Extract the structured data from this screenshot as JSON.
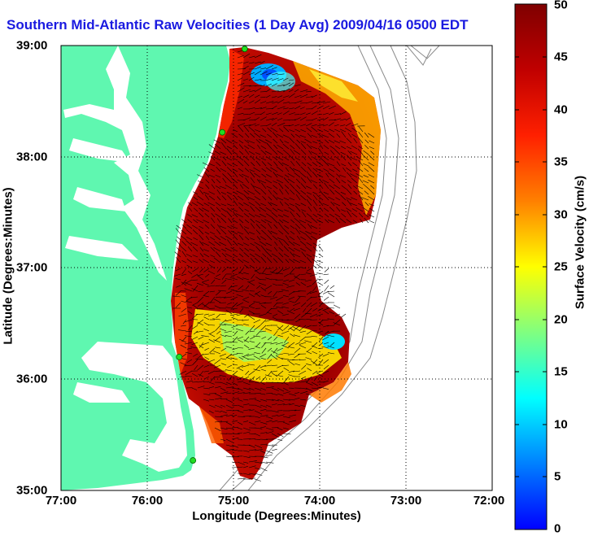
{
  "title": "Southern Mid-Atlantic Raw Velocities (1 Day Avg) 2009/04/16 0500 EDT",
  "map": {
    "x_axis_label": "Longitude (Degrees:Minutes)",
    "y_axis_label": "Latitude (Degrees:Minutes)",
    "x_ticks": [
      "77:00",
      "76:00",
      "75:00",
      "74:00",
      "73:00",
      "72:00"
    ],
    "y_ticks": [
      "39:00",
      "38:00",
      "37:00",
      "36:00",
      "35:00"
    ],
    "lon_range": [
      -77,
      -72
    ],
    "lat_range": [
      35,
      39
    ],
    "grid": true,
    "land_color": "#5ff7b0",
    "water_color": "#ffffff"
  },
  "colorbar": {
    "label": "Surface Velocity (cm/s)",
    "ticks": [
      "50",
      "45",
      "40",
      "35",
      "30",
      "25",
      "20",
      "15",
      "10",
      "5",
      "0"
    ],
    "range": [
      0,
      50
    ],
    "colormap": "jet"
  },
  "stations": [
    {
      "lon": -74.87,
      "lat": 38.97
    },
    {
      "lon": -75.13,
      "lat": 38.22
    },
    {
      "lon": -75.63,
      "lat": 36.2
    },
    {
      "lon": -75.47,
      "lat": 35.27
    }
  ]
}
